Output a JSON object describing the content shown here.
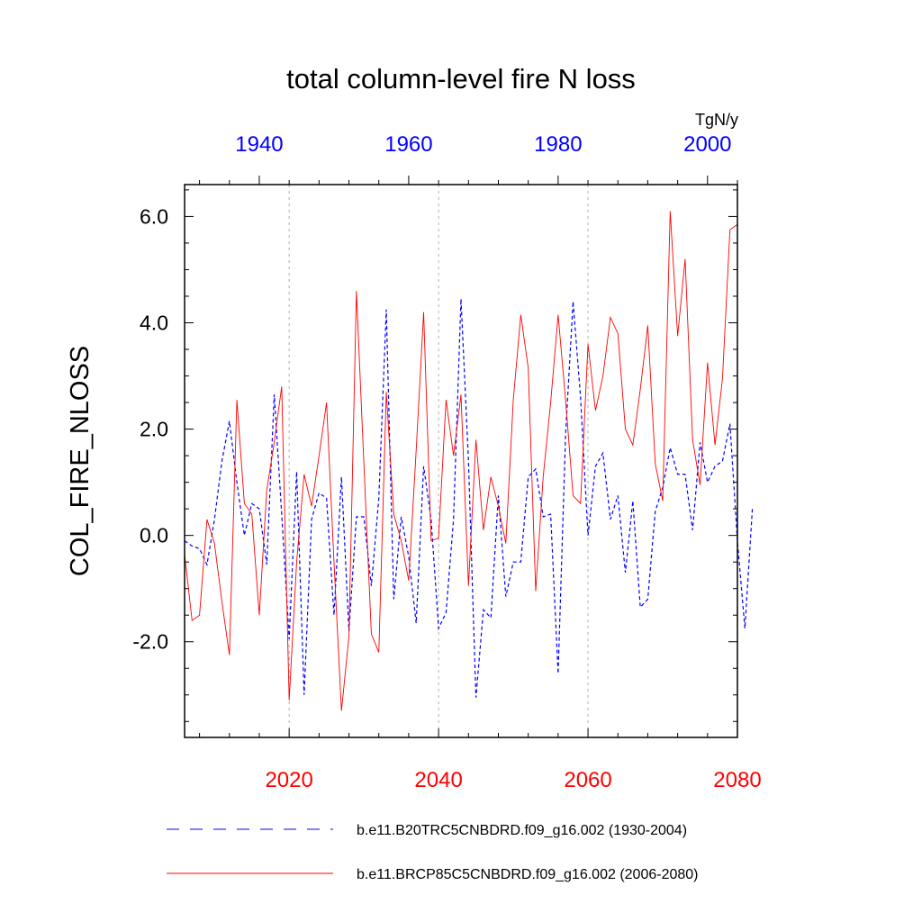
{
  "chart_data": {
    "type": "line",
    "title": "total column-level fire N loss",
    "units": "TgN/y",
    "ylabel": "COL_FIRE_NLOSS",
    "ylim": [
      -3.8,
      6.6
    ],
    "yticks": [
      -2.0,
      0.0,
      2.0,
      4.0,
      6.0
    ],
    "ytick_labels": [
      "-2.0",
      "0.0",
      "2.0",
      "4.0",
      "6.0"
    ],
    "ytick_minor_step": 0.5,
    "bottom_axis": {
      "xlim": [
        2006,
        2080
      ],
      "ticks": [
        2020,
        2040,
        2060,
        2080
      ],
      "tick_labels": [
        "2020",
        "2040",
        "2060",
        "2080"
      ],
      "minor_step": 4,
      "color": "#ff0000"
    },
    "top_axis": {
      "xlim": [
        1930,
        2004
      ],
      "ticks": [
        1940,
        1960,
        1980,
        2000
      ],
      "tick_labels": [
        "1940",
        "1960",
        "1980",
        "2000"
      ],
      "minor_step": 4,
      "color": "#0000ff"
    },
    "gridlines_x": [
      2020,
      2040,
      2060
    ],
    "series": [
      {
        "name": "b.e11.B20TRC5CNBDRD.f09_g16.002 (1930-2004)",
        "axis": "top",
        "color": "#0000ff",
        "style": "dashed",
        "x_start": 1930,
        "values": [
          -0.1,
          -0.2,
          -0.25,
          -0.55,
          0.3,
          1.4,
          2.15,
          1.0,
          0.0,
          0.6,
          0.5,
          -0.55,
          2.65,
          0.4,
          -1.95,
          1.2,
          -3.0,
          0.3,
          0.8,
          0.7,
          -1.5,
          1.1,
          -1.8,
          0.35,
          0.35,
          -0.95,
          0.7,
          4.25,
          -1.2,
          0.35,
          -0.4,
          -1.65,
          1.3,
          0.3,
          -1.75,
          -1.45,
          0.3,
          4.45,
          1.4,
          -3.05,
          -1.4,
          -1.55,
          0.75,
          -1.15,
          -0.5,
          -0.5,
          1.1,
          1.25,
          0.35,
          0.4,
          -2.6,
          1.9,
          4.4,
          2.6,
          0.0,
          1.3,
          1.55,
          0.3,
          0.75,
          -0.7,
          0.65,
          -1.35,
          -1.2,
          0.45,
          0.9,
          1.65,
          1.15,
          1.15,
          0.1,
          1.75,
          1.0,
          1.3,
          1.4,
          2.1,
          -0.1,
          -1.75,
          0.5
        ]
      },
      {
        "name": "b.e11.BRCP85C5CNBDRD.f09_g16.002 (2006-2080)",
        "axis": "bottom",
        "color": "#ff0000",
        "style": "solid",
        "x_start": 2006,
        "values": [
          -0.35,
          -1.6,
          -1.5,
          0.3,
          -0.15,
          -1.25,
          -2.25,
          2.55,
          0.6,
          0.4,
          -1.5,
          0.85,
          1.75,
          2.8,
          -3.1,
          -0.5,
          1.15,
          0.55,
          1.5,
          2.5,
          -0.5,
          -3.3,
          -1.9,
          4.6,
          1.35,
          -1.85,
          -2.2,
          2.7,
          0.4,
          -0.1,
          -0.85,
          1.6,
          4.2,
          -0.1,
          -0.05,
          2.55,
          1.5,
          2.65,
          -0.95,
          1.8,
          0.1,
          1.1,
          0.55,
          -0.15,
          2.55,
          4.15,
          3.15,
          -1.05,
          1.1,
          2.5,
          4.15,
          2.55,
          0.75,
          0.6,
          3.6,
          2.35,
          3.0,
          4.1,
          3.8,
          2.0,
          1.7,
          2.75,
          3.95,
          1.35,
          0.65,
          6.1,
          3.75,
          5.2,
          1.8,
          0.95,
          3.25,
          1.7,
          2.95,
          5.75,
          5.85
        ]
      }
    ]
  },
  "legend": {
    "items": [
      {
        "label": "b.e11.B20TRC5CNBDRD.f09_g16.002 (1930-2004)"
      },
      {
        "label": "b.e11.BRCP85C5CNBDRD.f09_g16.002 (2006-2080)"
      }
    ]
  }
}
